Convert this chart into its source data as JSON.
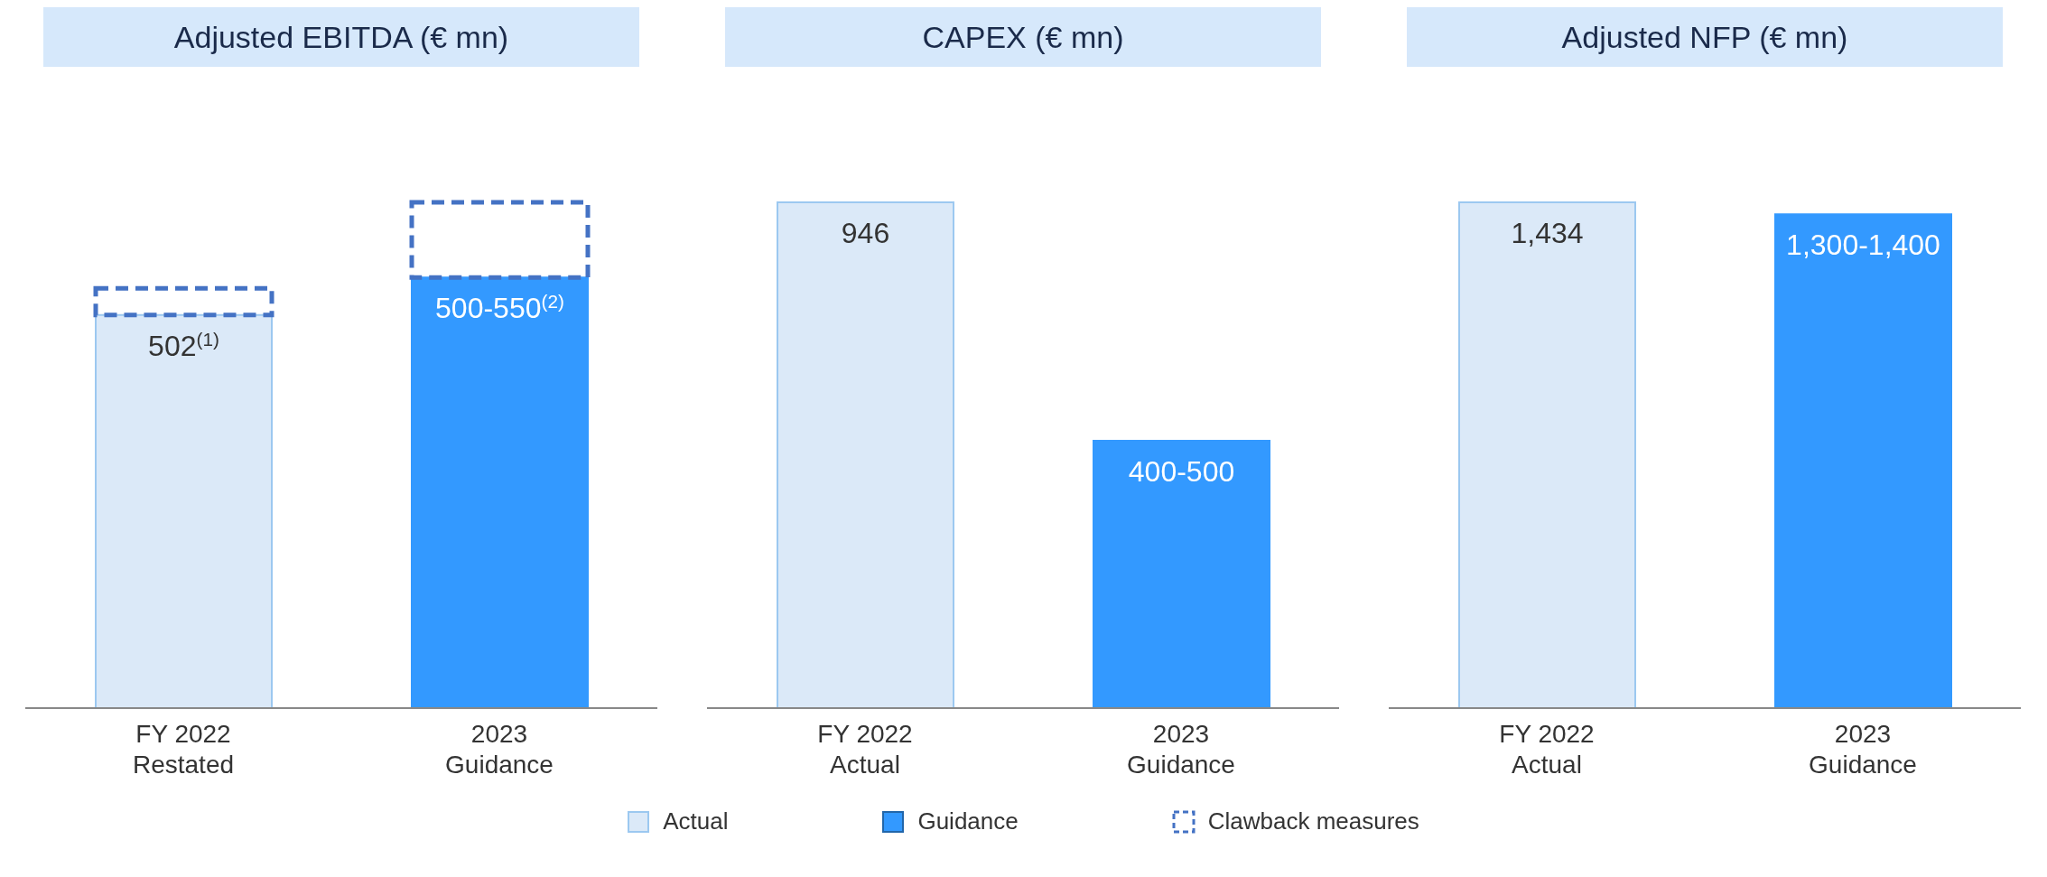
{
  "chart_data": [
    {
      "type": "bar",
      "title": "Adjusted EBITDA (€ mn)",
      "categories": [
        "FY 2022\nRestated",
        "2023\nGuidance"
      ],
      "stacked": true,
      "legend": "bottom",
      "series": [
        {
          "name": "Actual",
          "color": "#dbe9f8",
          "values": [
            502,
            null
          ],
          "value_labels": [
            "502$^{(1)}$",
            null
          ]
        },
        {
          "name": "Guidance",
          "color": "#3399ff",
          "values": [
            null,
            550
          ],
          "value_labels": [
            null,
            "500-550$^{(2)}$"
          ]
        },
        {
          "name": "Clawback measures",
          "color": "#4472c4",
          "line_style": "dashed",
          "values": [
            34,
            96
          ]
        }
      ]
    },
    {
      "type": "bar",
      "title": "CAPEX (€ mn)",
      "categories": [
        "FY 2022\nActual",
        "2023\nGuidance"
      ],
      "stacked": true,
      "series": [
        {
          "color": "#dbe9f8",
          "values": [
            946,
            null
          ],
          "value_labels": [
            "946",
            null
          ]
        },
        {
          "color": "#3399ff",
          "values": [
            null,
            500
          ],
          "value_labels": [
            null,
            "400-500"
          ]
        }
      ]
    },
    {
      "type": "bar",
      "title": "Adjusted NFP (€ mn)",
      "categories": [
        "FY 2022\nActual",
        "2023\nGuidance"
      ],
      "stacked": true,
      "series": [
        {
          "color": "#dbe9f8",
          "values": [
            1434,
            null
          ],
          "value_labels": [
            "1,434",
            null
          ]
        },
        {
          "color": "#3399ff",
          "values": [
            null,
            1400
          ],
          "value_labels": [
            null,
            "1,300-1,400"
          ]
        }
      ]
    }
  ]
}
